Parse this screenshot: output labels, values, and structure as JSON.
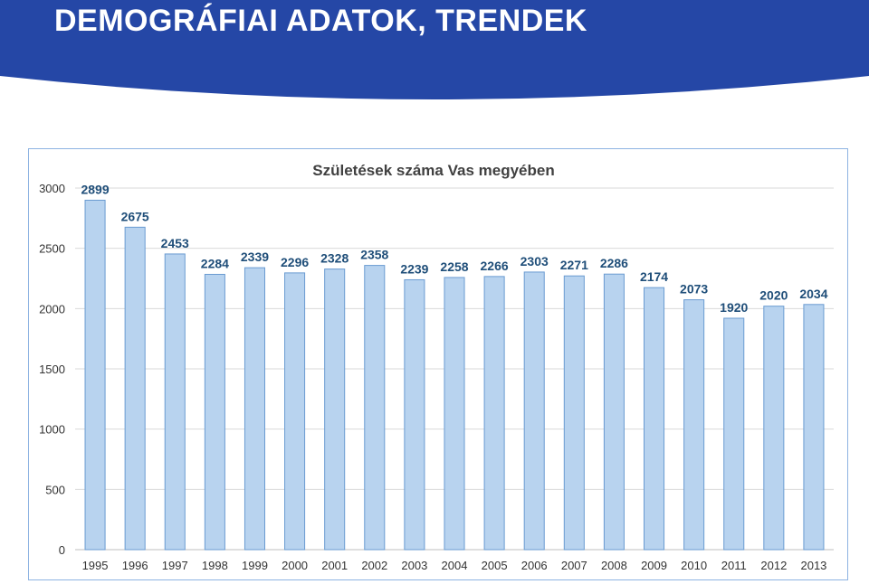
{
  "slide": {
    "title": "DEMOGRÁFIAI ADATOK, TRENDEK",
    "header_color": "#2547a6"
  },
  "chart_data": {
    "type": "bar",
    "title": "Születések száma Vas megyében",
    "xlabel": "",
    "ylabel": "",
    "categories": [
      "1995",
      "1996",
      "1997",
      "1998",
      "1999",
      "2000",
      "2001",
      "2002",
      "2003",
      "2004",
      "2005",
      "2006",
      "2007",
      "2008",
      "2009",
      "2010",
      "2011",
      "2012",
      "2013"
    ],
    "values": [
      2899,
      2675,
      2453,
      2284,
      2339,
      2296,
      2328,
      2358,
      2239,
      2258,
      2266,
      2303,
      2271,
      2286,
      2174,
      2073,
      1920,
      2020,
      2034
    ],
    "ylim": [
      0,
      3000
    ],
    "yticks": [
      0,
      500,
      1000,
      1500,
      2000,
      2500,
      3000
    ],
    "grid": true,
    "legend": "none",
    "bar_color": "#b8d3ef",
    "bar_edge_color": "#6a9bd1",
    "label_color": "#1f4e79"
  }
}
